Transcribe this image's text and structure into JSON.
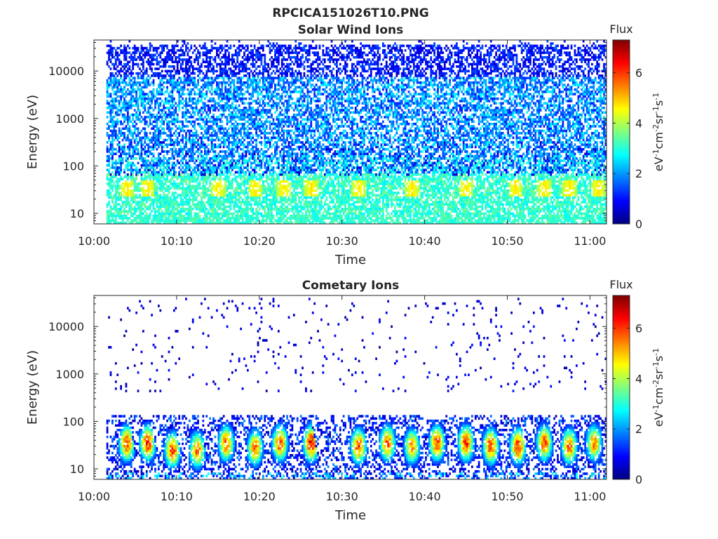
{
  "figure": {
    "title": "RPCICA151026T10.PNG"
  },
  "colors": {
    "axis": "#262626",
    "colormap": [
      "#00007f",
      "#0000ff",
      "#007fff",
      "#00ffff",
      "#7fff7f",
      "#ffff00",
      "#ff7f00",
      "#ff0000",
      "#7f0000"
    ]
  },
  "chart_data": [
    {
      "type": "heatmap",
      "title": "Solar Wind Ions",
      "xlabel": "Time",
      "ylabel": "Energy (eV)",
      "x_scale": "time",
      "y_scale": "log",
      "xlim": [
        "10:00",
        "11:02"
      ],
      "ylim": [
        6,
        45000
      ],
      "x_ticks": [
        "10:00",
        "10:10",
        "10:20",
        "10:30",
        "10:40",
        "10:50",
        "11:00"
      ],
      "y_ticks": [
        10,
        100,
        1000,
        10000
      ],
      "y_tick_labels": [
        "10",
        "100",
        "1000",
        "10000"
      ],
      "data_time_range": [
        "10:01.5",
        "11:02"
      ],
      "colorbar": {
        "title": "Flux",
        "label": "eV-1cm-2sr-1s-1",
        "range": [
          0,
          7.3
        ],
        "ticks": [
          0,
          2,
          4,
          6
        ],
        "tick_labels": [
          "0",
          "2",
          "4",
          "6"
        ]
      },
      "description_of_values": "Broad low-flux (1-3) speckle from 10 to 30000 eV; moderate flux (3-5) bands below ~60 eV; peaks ~5 near 30 eV at 10:04, 10:06, 10:15, 10:23, 10:26, 10:51",
      "grid": false
    },
    {
      "type": "heatmap",
      "title": "Cometary Ions",
      "xlabel": "Time",
      "ylabel": "Energy (eV)",
      "x_scale": "time",
      "y_scale": "log",
      "xlim": [
        "10:00",
        "11:02"
      ],
      "ylim": [
        6,
        45000
      ],
      "x_ticks": [
        "10:00",
        "10:10",
        "10:20",
        "10:30",
        "10:40",
        "10:50",
        "11:00"
      ],
      "y_ticks": [
        10,
        100,
        1000,
        10000
      ],
      "y_tick_labels": [
        "10",
        "100",
        "1000",
        "10000"
      ],
      "data_time_range": [
        "10:01.5",
        "11:02"
      ],
      "colorbar": {
        "title": "Flux",
        "label": "eV-1cm-2sr-1s-1",
        "range": [
          0,
          7.3
        ],
        "ticks": [
          0,
          2,
          4,
          6
        ],
        "tick_labels": [
          "0",
          "2",
          "4",
          "6"
        ]
      },
      "bursts": [
        {
          "time": "10:04",
          "peak_energy": 35,
          "top_energy": 180,
          "peak_flux": 6.5
        },
        {
          "time": "10:06.5",
          "peak_energy": 35,
          "top_energy": 200,
          "peak_flux": 6.6
        },
        {
          "time": "10:09.5",
          "peak_energy": 25,
          "top_energy": 150,
          "peak_flux": 6.4
        },
        {
          "time": "10:12.5",
          "peak_energy": 25,
          "top_energy": 200,
          "peak_flux": 6.2
        },
        {
          "time": "10:16",
          "peak_energy": 35,
          "top_energy": 450,
          "peak_flux": 6.3
        },
        {
          "time": "10:19.5",
          "peak_energy": 28,
          "top_energy": 300,
          "peak_flux": 6.0
        },
        {
          "time": "10:22.5",
          "peak_energy": 35,
          "top_energy": 350,
          "peak_flux": 6.4
        },
        {
          "time": "10:26.3",
          "peak_energy": 35,
          "top_energy": 100,
          "peak_flux": 7.0
        },
        {
          "time": "10:32",
          "peak_energy": 30,
          "top_energy": 300,
          "peak_flux": 6.4
        },
        {
          "time": "10:35.5",
          "peak_energy": 35,
          "top_energy": 350,
          "peak_flux": 6.3
        },
        {
          "time": "10:38.5",
          "peak_energy": 30,
          "top_energy": 250,
          "peak_flux": 5.8
        },
        {
          "time": "10:41.5",
          "peak_energy": 35,
          "top_energy": 400,
          "peak_flux": 6.4
        },
        {
          "time": "10:45",
          "peak_energy": 35,
          "top_energy": 450,
          "peak_flux": 6.5
        },
        {
          "time": "10:48",
          "peak_energy": 30,
          "top_energy": 350,
          "peak_flux": 6.5
        },
        {
          "time": "10:51.3",
          "peak_energy": 30,
          "top_energy": 180,
          "peak_flux": 6.6
        },
        {
          "time": "10:54.5",
          "peak_energy": 35,
          "top_energy": 300,
          "peak_flux": 6.3
        },
        {
          "time": "10:57.5",
          "peak_energy": 30,
          "top_energy": 400,
          "peak_flux": 6.2
        },
        {
          "time": "11:00.5",
          "peak_energy": 35,
          "top_energy": 350,
          "peak_flux": 6.0
        }
      ],
      "grid": false
    }
  ]
}
